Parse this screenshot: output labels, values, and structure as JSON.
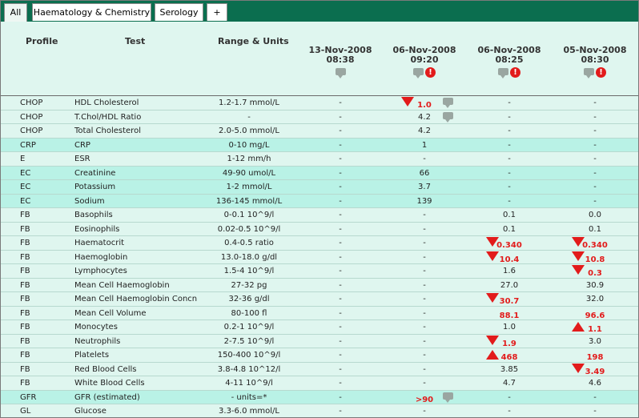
{
  "tabs": [
    {
      "label": "All",
      "active": true
    },
    {
      "label": "Haematology & Chemistry",
      "active": false
    },
    {
      "label": "Serology",
      "active": false
    },
    {
      "label": "+",
      "active": false
    }
  ],
  "header": {
    "profile": "Profile",
    "test": "Test",
    "range": "Range & Units",
    "dates": [
      {
        "date": "13-Nov-2008",
        "time": "08:38",
        "icons": [
          "comment-icon"
        ]
      },
      {
        "date": "06-Nov-2008",
        "time": "09:20",
        "icons": [
          "comment-icon",
          "alert-icon"
        ]
      },
      {
        "date": "06-Nov-2008",
        "time": "08:25",
        "icons": [
          "comment-icon",
          "alert-icon"
        ]
      },
      {
        "date": "05-Nov-2008",
        "time": "08:30",
        "icons": [
          "comment-icon",
          "alert-icon"
        ]
      }
    ]
  },
  "colors": {
    "tab_bar": "#0b6e4f",
    "abnormal": "#e21b1b",
    "row_alt": "#b9f2e6",
    "row_plain": "#dff6ef"
  },
  "rows": [
    {
      "profile": "CHOP",
      "test": "HDL Cholesterol",
      "range": "1.2-1.7 mmol/L",
      "alt": false,
      "values": [
        {
          "v": "-"
        },
        {
          "v": "1.0",
          "flag": "low",
          "comment": true
        },
        {
          "v": "-"
        },
        {
          "v": "-"
        }
      ]
    },
    {
      "profile": "CHOP",
      "test": "T.Chol/HDL Ratio",
      "range": "-",
      "alt": false,
      "values": [
        {
          "v": "-"
        },
        {
          "v": "4.2",
          "comment": true
        },
        {
          "v": "-"
        },
        {
          "v": "-"
        }
      ]
    },
    {
      "profile": "CHOP",
      "test": "Total Cholesterol",
      "range": "2.0-5.0 mmol/L",
      "alt": false,
      "values": [
        {
          "v": "-"
        },
        {
          "v": "4.2"
        },
        {
          "v": "-"
        },
        {
          "v": "-"
        }
      ]
    },
    {
      "profile": "CRP",
      "test": "CRP",
      "range": "0-10 mg/L",
      "alt": true,
      "values": [
        {
          "v": "-"
        },
        {
          "v": "1"
        },
        {
          "v": "-"
        },
        {
          "v": "-"
        }
      ]
    },
    {
      "profile": "E",
      "test": "ESR",
      "range": "1-12 mm/h",
      "alt": false,
      "values": [
        {
          "v": "-"
        },
        {
          "v": "-"
        },
        {
          "v": "-"
        },
        {
          "v": "-"
        }
      ]
    },
    {
      "profile": "EC",
      "test": "Creatinine",
      "range": "49-90 umol/L",
      "alt": true,
      "values": [
        {
          "v": "-"
        },
        {
          "v": "66"
        },
        {
          "v": "-"
        },
        {
          "v": "-"
        }
      ]
    },
    {
      "profile": "EC",
      "test": "Potassium",
      "range": "1-2 mmol/L",
      "alt": true,
      "values": [
        {
          "v": "-"
        },
        {
          "v": "3.7"
        },
        {
          "v": "-"
        },
        {
          "v": "-"
        }
      ]
    },
    {
      "profile": "EC",
      "test": "Sodium",
      "range": "136-145 mmol/L",
      "alt": true,
      "values": [
        {
          "v": "-"
        },
        {
          "v": "139"
        },
        {
          "v": "-"
        },
        {
          "v": "-"
        }
      ]
    },
    {
      "profile": "FB",
      "test": "Basophils",
      "range": "0-0.1 10^9/l",
      "alt": false,
      "values": [
        {
          "v": "-"
        },
        {
          "v": "-"
        },
        {
          "v": "0.1"
        },
        {
          "v": "0.0"
        }
      ]
    },
    {
      "profile": "FB",
      "test": "Eosinophils",
      "range": "0.02-0.5 10^9/l",
      "alt": false,
      "values": [
        {
          "v": "-"
        },
        {
          "v": "-"
        },
        {
          "v": "0.1"
        },
        {
          "v": "0.1"
        }
      ]
    },
    {
      "profile": "FB",
      "test": "Haematocrit",
      "range": "0.4-0.5 ratio",
      "alt": false,
      "values": [
        {
          "v": "-"
        },
        {
          "v": "-"
        },
        {
          "v": "0.340",
          "flag": "low"
        },
        {
          "v": "0.340",
          "flag": "low"
        }
      ]
    },
    {
      "profile": "FB",
      "test": "Haemoglobin",
      "range": "13.0-18.0 g/dl",
      "alt": false,
      "values": [
        {
          "v": "-"
        },
        {
          "v": "-"
        },
        {
          "v": "10.4",
          "flag": "low"
        },
        {
          "v": "10.8",
          "flag": "low"
        }
      ]
    },
    {
      "profile": "FB",
      "test": "Lymphocytes",
      "range": "1.5-4 10^9/l",
      "alt": false,
      "values": [
        {
          "v": "-"
        },
        {
          "v": "-"
        },
        {
          "v": "1.6"
        },
        {
          "v": "0.3",
          "flag": "low"
        }
      ]
    },
    {
      "profile": "FB",
      "test": "Mean Cell Haemoglobin",
      "range": "27-32 pg",
      "alt": false,
      "values": [
        {
          "v": "-"
        },
        {
          "v": "-"
        },
        {
          "v": "27.0"
        },
        {
          "v": "30.9"
        }
      ]
    },
    {
      "profile": "FB",
      "test": "Mean Cell Haemoglobin Concn",
      "range": "32-36 g/dl",
      "alt": false,
      "values": [
        {
          "v": "-"
        },
        {
          "v": "-"
        },
        {
          "v": "30.7",
          "flag": "low"
        },
        {
          "v": "32.0"
        }
      ]
    },
    {
      "profile": "FB",
      "test": "Mean Cell Volume",
      "range": "80-100 fl",
      "alt": false,
      "values": [
        {
          "v": "-"
        },
        {
          "v": "-"
        },
        {
          "v": "88.1",
          "flag": "bold"
        },
        {
          "v": "96.6",
          "flag": "bold"
        }
      ]
    },
    {
      "profile": "FB",
      "test": "Monocytes",
      "range": "0.2-1 10^9/l",
      "alt": false,
      "values": [
        {
          "v": "-"
        },
        {
          "v": "-"
        },
        {
          "v": "1.0"
        },
        {
          "v": "1.1",
          "flag": "high"
        }
      ]
    },
    {
      "profile": "FB",
      "test": "Neutrophils",
      "range": "2-7.5 10^9/l",
      "alt": false,
      "values": [
        {
          "v": "-"
        },
        {
          "v": "-"
        },
        {
          "v": "1.9",
          "flag": "low"
        },
        {
          "v": "3.0"
        }
      ]
    },
    {
      "profile": "FB",
      "test": "Platelets",
      "range": "150-400 10^9/l",
      "alt": false,
      "values": [
        {
          "v": "-"
        },
        {
          "v": "-"
        },
        {
          "v": "468",
          "flag": "high"
        },
        {
          "v": "198",
          "flag": "bold"
        }
      ]
    },
    {
      "profile": "FB",
      "test": "Red Blood Cells",
      "range": "3.8-4.8 10^12/l",
      "alt": false,
      "values": [
        {
          "v": "-"
        },
        {
          "v": "-"
        },
        {
          "v": "3.85"
        },
        {
          "v": "3.49",
          "flag": "low"
        }
      ]
    },
    {
      "profile": "FB",
      "test": "White Blood Cells",
      "range": "4-11 10^9/l",
      "alt": false,
      "values": [
        {
          "v": "-"
        },
        {
          "v": "-"
        },
        {
          "v": "4.7"
        },
        {
          "v": "4.6"
        }
      ]
    },
    {
      "profile": "GFR",
      "test": "GFR (estimated)",
      "range": "- units=*",
      "alt": true,
      "values": [
        {
          "v": "-"
        },
        {
          "v": ">90",
          "flag": "bold",
          "comment": true
        },
        {
          "v": "-"
        },
        {
          "v": "-"
        }
      ]
    },
    {
      "profile": "GL",
      "test": "Glucose",
      "range": "3.3-6.0 mmol/L",
      "alt": false,
      "values": [
        {
          "v": "-"
        },
        {
          "v": "-"
        },
        {
          "v": "-"
        },
        {
          "v": "-"
        }
      ]
    }
  ]
}
